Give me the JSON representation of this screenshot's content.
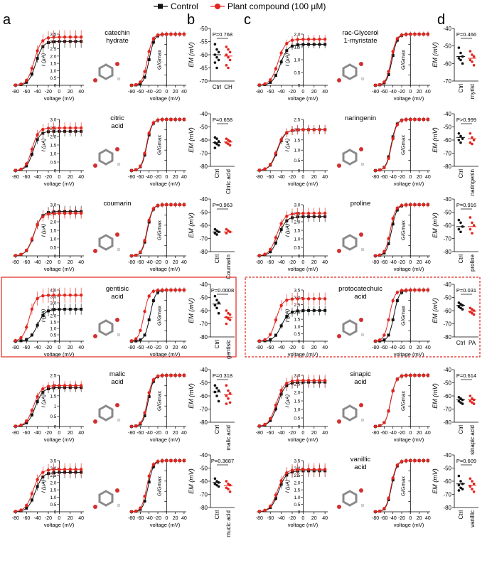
{
  "legend": {
    "control": "Control",
    "compound": "Plant compound (100 µM)"
  },
  "colors": {
    "control": "#111111",
    "compound": "#e3241d",
    "highlight": "#e3241d"
  },
  "panel_letters": [
    "a",
    "b",
    "c",
    "d"
  ],
  "axis_text": {
    "iv_ylabel": "I (µA)",
    "iv_xlabel": "voltage (mV)",
    "gv_ylabel": "G/Gmax",
    "gv_xlabel": "voltage (mV)",
    "em_ylabel": "EM (mV)"
  },
  "chart_data": [
    {
      "id": "catechin",
      "side": "left",
      "type": "line",
      "compound_label": [
        "catechin",
        "hydrate"
      ],
      "highlight": false,
      "iv_ymax": 3.5,
      "iv_yticks": [
        0,
        0.5,
        1.0,
        1.5,
        2.0,
        2.5,
        3.0,
        3.5
      ],
      "iv_yticklabels": [
        "0",
        "0.5",
        "1.0",
        "1.5",
        "2.0",
        "2.5",
        "3.0",
        "3.5"
      ],
      "iv_control": {
        "vhalf": -43,
        "k": 6.5,
        "max": 3.0
      },
      "iv_compound": {
        "vhalf": -46,
        "k": 6.5,
        "max": 3.3
      },
      "gv_control": {
        "vhalf": -40,
        "k": 6
      },
      "gv_compound": {
        "vhalf": -44,
        "k": 6
      },
      "em": {
        "ylim": [
          -70,
          -50
        ],
        "yticks": [
          -70,
          -65,
          -60,
          -55,
          -50
        ],
        "pvalue": "P=0.768",
        "groups": [
          "Ctrl",
          "CH"
        ],
        "rotated": false,
        "control_points": [
          -56,
          -58,
          -59,
          -60,
          -61,
          -62,
          -63,
          -65
        ],
        "compound_points": [
          -57,
          -58,
          -59,
          -60,
          -61,
          -62,
          -64,
          -65
        ],
        "control_mean": -60,
        "compound_mean": -60.5
      }
    },
    {
      "id": "citric",
      "side": "left",
      "type": "line",
      "compound_label": [
        "citric",
        "acid"
      ],
      "highlight": false,
      "iv_ymax": 3.0,
      "iv_yticks": [
        0,
        0.5,
        1.0,
        1.5,
        2.0,
        2.5,
        3.0
      ],
      "iv_yticklabels": [
        "0",
        "0.5",
        "1.0",
        "1.5",
        "2.0",
        "2.5",
        "3.0"
      ],
      "iv_control": {
        "vhalf": -48,
        "k": 6,
        "max": 2.3
      },
      "iv_compound": {
        "vhalf": -50,
        "k": 6,
        "max": 2.5
      },
      "gv_control": {
        "vhalf": -45,
        "k": 6
      },
      "gv_compound": {
        "vhalf": -46,
        "k": 6
      },
      "em": {
        "ylim": [
          -80,
          -40
        ],
        "yticks": [
          -80,
          -70,
          -60,
          -50,
          -40
        ],
        "pvalue": "P=0.658",
        "groups": [
          "Ctrl",
          "Citric acid"
        ],
        "rotated": true,
        "control_points": [
          -58,
          -59,
          -61,
          -62,
          -63,
          -64,
          -66
        ],
        "compound_points": [
          -59,
          -60,
          -61,
          -62,
          -63,
          -64
        ],
        "control_mean": -62,
        "compound_mean": -61.5
      }
    },
    {
      "id": "coumarin",
      "side": "left",
      "type": "line",
      "compound_label": [
        "coumarin"
      ],
      "highlight": false,
      "iv_ymax": 3.0,
      "iv_yticks": [
        0,
        0.5,
        1.0,
        1.5,
        2.0,
        2.5,
        3.0
      ],
      "iv_yticklabels": [
        "0",
        "0.5",
        "1.0",
        "1.5",
        "2.0",
        "2.5",
        "3.0"
      ],
      "iv_control": {
        "vhalf": -46,
        "k": 7,
        "max": 2.6
      },
      "iv_compound": {
        "vhalf": -47,
        "k": 7,
        "max": 2.5
      },
      "gv_control": {
        "vhalf": -44,
        "k": 6
      },
      "gv_compound": {
        "vhalf": -45,
        "k": 6
      },
      "em": {
        "ylim": [
          -80,
          -40
        ],
        "yticks": [
          -80,
          -70,
          -60,
          -50,
          -40
        ],
        "pvalue": "P=0.963",
        "groups": [
          "Ctrl",
          "Coumarin"
        ],
        "rotated": true,
        "control_points": [
          -63,
          -64,
          -65,
          -66,
          -67
        ],
        "compound_points": [
          -63,
          -64,
          -65,
          -66
        ],
        "control_mean": -65,
        "compound_mean": -65
      }
    },
    {
      "id": "gentisic",
      "side": "left",
      "type": "line",
      "compound_label": [
        "gentisic",
        "acid"
      ],
      "highlight": true,
      "iv_ymax": 4.0,
      "iv_yticks": [
        0,
        0.5,
        1.0,
        1.5,
        2.0,
        2.5,
        3.0,
        3.5,
        4.0
      ],
      "iv_yticklabels": [
        "0",
        "0.5",
        "1.0",
        "1.5",
        "2.0",
        "2.5",
        "3.0",
        "3.5",
        "4.0"
      ],
      "iv_control": {
        "vhalf": -40,
        "k": 7,
        "max": 2.5
      },
      "iv_compound": {
        "vhalf": -55,
        "k": 6,
        "max": 3.6
      },
      "gv_control": {
        "vhalf": -38,
        "k": 6
      },
      "gv_compound": {
        "vhalf": -52,
        "k": 6
      },
      "em": {
        "ylim": [
          -80,
          -40
        ],
        "yticks": [
          -80,
          -70,
          -60,
          -50,
          -40
        ],
        "pvalue": "P=0.0008",
        "groups": [
          "Ctrl",
          "gentisic"
        ],
        "rotated": true,
        "control_points": [
          -49,
          -52,
          -54,
          -56,
          -58,
          -62
        ],
        "compound_points": [
          -60,
          -62,
          -63,
          -65,
          -66,
          -67,
          -70
        ],
        "control_mean": -55,
        "compound_mean": -65
      }
    },
    {
      "id": "malic",
      "side": "left",
      "type": "line",
      "compound_label": [
        "malic",
        "acid"
      ],
      "highlight": false,
      "iv_ymax": 2.5,
      "iv_yticks": [
        0,
        0.5,
        1.0,
        1.5,
        2.0,
        2.5
      ],
      "iv_yticklabels": [
        "0",
        "0.5",
        "1",
        "1.5",
        "2",
        "2.5"
      ],
      "iv_control": {
        "vhalf": -44,
        "k": 7,
        "max": 1.9
      },
      "iv_compound": {
        "vhalf": -47,
        "k": 7,
        "max": 2.0
      },
      "gv_control": {
        "vhalf": -42,
        "k": 6
      },
      "gv_compound": {
        "vhalf": -44,
        "k": 6
      },
      "em": {
        "ylim": [
          -80,
          -40
        ],
        "yticks": [
          -80,
          -70,
          -60,
          -50,
          -40
        ],
        "pvalue": "P=0.318",
        "groups": [
          "Ctrl",
          "malic acid"
        ],
        "rotated": true,
        "control_points": [
          -52,
          -54,
          -56,
          -57,
          -60,
          -64
        ],
        "compound_points": [
          -52,
          -56,
          -58,
          -60,
          -62,
          -65,
          -66
        ],
        "control_mean": -57,
        "compound_mean": -59
      }
    },
    {
      "id": "mucic",
      "side": "left",
      "type": "line",
      "compound_label": [],
      "highlight": false,
      "iv_ymax": 3.5,
      "iv_yticks": [
        0,
        0.5,
        1.0,
        1.5,
        2.0,
        2.5,
        3.0,
        3.5
      ],
      "iv_yticklabels": [
        "0",
        "0.5",
        "1.0",
        "1.5",
        "2.0",
        "2.5",
        "3.0",
        "3.5"
      ],
      "iv_control": {
        "vhalf": -44,
        "k": 7,
        "max": 2.7
      },
      "iv_compound": {
        "vhalf": -48,
        "k": 7,
        "max": 2.9
      },
      "gv_control": {
        "vhalf": -42,
        "k": 6
      },
      "gv_compound": {
        "vhalf": -45,
        "k": 6
      },
      "em": {
        "ylim": [
          -80,
          -40
        ],
        "yticks": [
          -80,
          -70,
          -60,
          -50,
          -40
        ],
        "pvalue": "P=0.3687",
        "groups": [
          "Ctrl",
          "mucic acid"
        ],
        "rotated": true,
        "control_points": [
          -58,
          -60,
          -61,
          -62,
          -63,
          -64
        ],
        "compound_points": [
          -60,
          -62,
          -63,
          -65,
          -66,
          -68
        ],
        "control_mean": -61,
        "compound_mean": -63.5
      }
    },
    {
      "id": "myristate",
      "side": "right",
      "type": "line",
      "compound_label": [
        "rac-Glycerol",
        "1-myristate"
      ],
      "highlight": false,
      "iv_ymax": 2.0,
      "iv_yticks": [
        0,
        0.5,
        1.0,
        1.5,
        2.0
      ],
      "iv_yticklabels": [
        "0",
        "0.5",
        "1.0",
        "1.5",
        "2.0"
      ],
      "iv_control": {
        "vhalf": -42,
        "k": 7,
        "max": 1.6
      },
      "iv_compound": {
        "vhalf": -46,
        "k": 7,
        "max": 1.8
      },
      "gv_control": {
        "vhalf": -42,
        "k": 6
      },
      "gv_compound": {
        "vhalf": -44,
        "k": 6
      },
      "em": {
        "ylim": [
          -70,
          -40
        ],
        "yticks": [
          -70,
          -60,
          -50,
          -40
        ],
        "pvalue": "P=0.466",
        "groups": [
          "Ctrl",
          "myrist"
        ],
        "rotated": true,
        "control_points": [
          -51,
          -54,
          -56,
          -57,
          -58,
          -60
        ],
        "compound_points": [
          -53,
          -55,
          -56,
          -58,
          -59,
          -61
        ],
        "control_mean": -56,
        "compound_mean": -57
      }
    },
    {
      "id": "naringenin",
      "side": "right",
      "type": "line",
      "compound_label": [
        "naringenin"
      ],
      "highlight": false,
      "iv_ymax": 2.5,
      "iv_yticks": [
        0,
        0.5,
        1.0,
        1.5,
        2.0,
        2.5
      ],
      "iv_yticklabels": [
        "0",
        "0.5",
        "1.0",
        "1.5",
        "2.0",
        "2.5"
      ],
      "iv_control": {
        "vhalf": -47,
        "k": 7,
        "max": 2.0
      },
      "iv_compound": {
        "vhalf": -48,
        "k": 7,
        "max": 2.0
      },
      "gv_control": {
        "vhalf": -44,
        "k": 6
      },
      "gv_compound": {
        "vhalf": -43,
        "k": 6
      },
      "em": {
        "ylim": [
          -80,
          -40
        ],
        "yticks": [
          -80,
          -70,
          -60,
          -50,
          -40
        ],
        "pvalue": "P>0.999",
        "groups": [
          "Ctrl",
          "naringenin"
        ],
        "rotated": true,
        "control_points": [
          -55,
          -57,
          -59,
          -60,
          -62
        ],
        "compound_points": [
          -55,
          -58,
          -60,
          -62,
          -63
        ],
        "control_mean": -58,
        "compound_mean": -59
      }
    },
    {
      "id": "proline",
      "side": "right",
      "type": "line",
      "compound_label": [
        "proline"
      ],
      "highlight": false,
      "iv_ymax": 3.0,
      "iv_yticks": [
        0,
        0.5,
        1.0,
        1.5,
        2.0,
        2.5,
        3.0
      ],
      "iv_yticklabels": [
        "0",
        "0.5",
        "1.0",
        "1.5",
        "2.0",
        "2.5",
        "3.0"
      ],
      "iv_control": {
        "vhalf": -45,
        "k": 7,
        "max": 2.3
      },
      "iv_compound": {
        "vhalf": -48,
        "k": 7,
        "max": 2.5
      },
      "gv_control": {
        "vhalf": -43,
        "k": 6
      },
      "gv_compound": {
        "vhalf": -46,
        "k": 6
      },
      "em": {
        "ylim": [
          -80,
          -40
        ],
        "yticks": [
          -80,
          -70,
          -60,
          -50,
          -40
        ],
        "pvalue": "P=0.916",
        "groups": [
          "Ctrl",
          "proline"
        ],
        "rotated": true,
        "control_points": [
          -56,
          -58,
          -61,
          -63,
          -65
        ],
        "compound_points": [
          -54,
          -58,
          -60,
          -63,
          -66
        ],
        "control_mean": -61,
        "compound_mean": -61
      }
    },
    {
      "id": "protocatechuic",
      "side": "right",
      "type": "line",
      "compound_label": [
        "protocatechuic",
        "acid"
      ],
      "highlight": true,
      "iv_ymax": 3.5,
      "iv_yticks": [
        0,
        0.5,
        1.0,
        1.5,
        2.0,
        2.5,
        3.0,
        3.5
      ],
      "iv_yticklabels": [
        "0",
        "0.5",
        "1.0",
        "1.5",
        "2.0",
        "2.5",
        "3.0",
        "3.5"
      ],
      "iv_control": {
        "vhalf": -40,
        "k": 7,
        "max": 2.1
      },
      "iv_compound": {
        "vhalf": -50,
        "k": 6,
        "max": 2.9
      },
      "gv_control": {
        "vhalf": -38,
        "k": 6
      },
      "gv_compound": {
        "vhalf": -48,
        "k": 6
      },
      "em": {
        "ylim": [
          -80,
          -40
        ],
        "yticks": [
          -80,
          -70,
          -60,
          -50,
          -40
        ],
        "pvalue": "P=0.031",
        "groups": [
          "Ctrl",
          "PA"
        ],
        "rotated": false,
        "control_points": [
          -54,
          -55,
          -56,
          -57,
          -58,
          -59
        ],
        "compound_points": [
          -58,
          -59,
          -60,
          -61,
          -62,
          -63
        ],
        "control_mean": -56,
        "compound_mean": -60.5
      }
    },
    {
      "id": "sinapic",
      "side": "right",
      "type": "line",
      "compound_label": [
        "sinapic",
        "acid"
      ],
      "highlight": false,
      "iv_ymax": 3.0,
      "iv_yticks": [
        0,
        0.5,
        1.0,
        1.5,
        2.0,
        2.5,
        3.0
      ],
      "iv_yticklabels": [
        "0",
        "0.5",
        "1.0",
        "1.5",
        "2.0",
        "2.5",
        "3.0"
      ],
      "iv_control": {
        "vhalf": -47,
        "k": 7,
        "max": 2.6
      },
      "iv_compound": {
        "vhalf": -49,
        "k": 7,
        "max": 2.7
      },
      "gv_control": {
        "vhalf": -45,
        "k": 6
      },
      "gv_compound": {
        "vhalf": -45,
        "k": 6
      },
      "em": {
        "ylim": [
          -80,
          -40
        ],
        "yticks": [
          -80,
          -70,
          -60,
          -50,
          -40
        ],
        "pvalue": "P=0.614",
        "groups": [
          "Ctrl",
          "sinapic acid"
        ],
        "rotated": true,
        "control_points": [
          -61,
          -62,
          -63,
          -64,
          -65,
          -66
        ],
        "compound_points": [
          -60,
          -62,
          -63,
          -64,
          -65,
          -66
        ],
        "control_mean": -63,
        "compound_mean": -63
      }
    },
    {
      "id": "vanillic",
      "side": "right",
      "type": "line",
      "compound_label": [
        "vanillic",
        "acid"
      ],
      "highlight": false,
      "iv_ymax": 3.5,
      "iv_yticks": [
        0,
        0.5,
        1.0,
        1.5,
        2.0,
        2.5,
        3.0,
        3.5
      ],
      "iv_yticklabels": [
        "0",
        "0.5",
        "1.0",
        "1.5",
        "2.0",
        "2.5",
        "3.0",
        "3.5"
      ],
      "iv_control": {
        "vhalf": -45,
        "k": 7,
        "max": 2.8
      },
      "iv_compound": {
        "vhalf": -47,
        "k": 7,
        "max": 2.9
      },
      "gv_control": {
        "vhalf": -43,
        "k": 6
      },
      "gv_compound": {
        "vhalf": -44,
        "k": 6
      },
      "em": {
        "ylim": [
          -80,
          -40
        ],
        "yticks": [
          -80,
          -70,
          -60,
          -50,
          -40
        ],
        "pvalue": "P=0.609",
        "groups": [
          "Ctrl",
          "vanillic"
        ],
        "rotated": true,
        "control_points": [
          -56,
          -60,
          -62,
          -63,
          -65,
          -66,
          -67
        ],
        "compound_points": [
          -58,
          -60,
          -62,
          -64,
          -66,
          -68
        ],
        "control_mean": -62,
        "compound_mean": -63
      }
    }
  ]
}
